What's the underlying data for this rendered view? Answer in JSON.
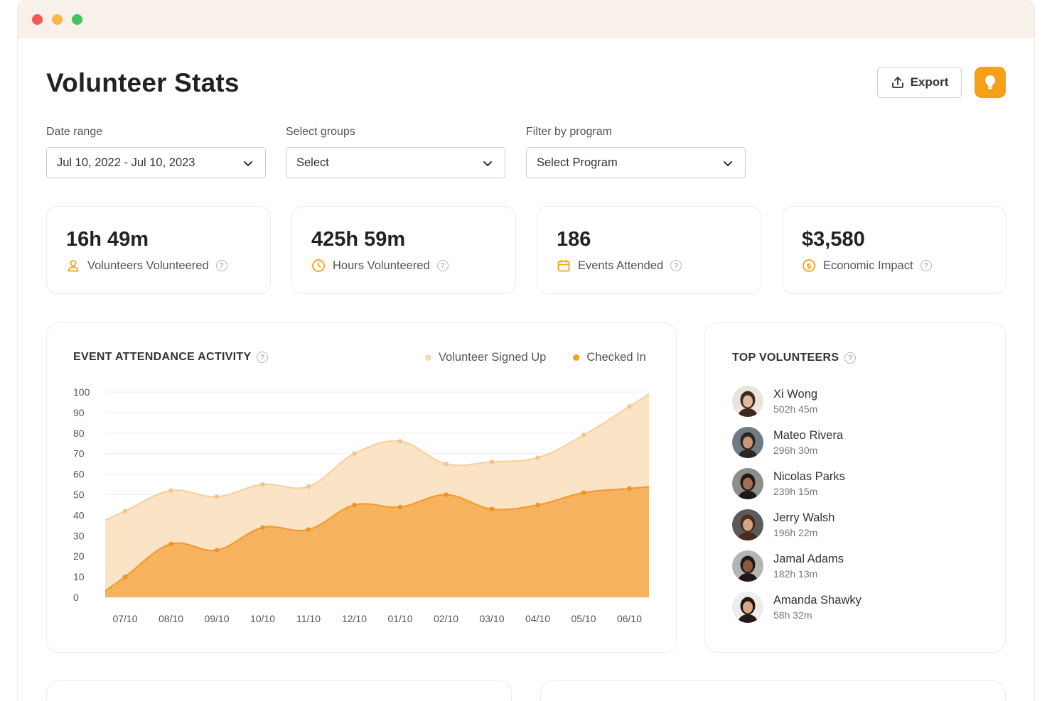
{
  "page": {
    "title": "Volunteer Stats"
  },
  "header": {
    "export_label": "Export"
  },
  "filters": [
    {
      "label": "Date range",
      "value": "Jul 10, 2022 - Jul 10, 2023"
    },
    {
      "label": "Select groups",
      "value": "Select"
    },
    {
      "label": "Filter by program",
      "value": "Select Program"
    }
  ],
  "stats": [
    {
      "value": "16h 49m",
      "label": "Volunteers Volunteered",
      "icon": "person-icon"
    },
    {
      "value": "425h 59m",
      "label": "Hours Volunteered",
      "icon": "clock-icon"
    },
    {
      "value": "186",
      "label": "Events Attended",
      "icon": "calendar-icon"
    },
    {
      "value": "$3,580",
      "label": "Economic Impact",
      "icon": "dollar-coin-icon"
    }
  ],
  "colors": {
    "accent": "#f5a016",
    "signed_up_fill": "#fbe3c6",
    "checked_in_fill": "#f6b25e",
    "checked_in_line": "#f09a28"
  },
  "chart_data": {
    "type": "area",
    "title": "EVENT ATTENDANCE ACTIVITY",
    "categories": [
      "07/10",
      "08/10",
      "09/10",
      "10/10",
      "11/10",
      "12/10",
      "01/10",
      "02/10",
      "03/10",
      "04/10",
      "05/10",
      "06/10"
    ],
    "series": [
      {
        "name": "Volunteer Signed Up",
        "values": [
          42,
          52,
          49,
          55,
          54,
          70,
          76,
          65,
          66,
          68,
          79,
          93
        ]
      },
      {
        "name": "Checked In",
        "values": [
          10,
          26,
          23,
          34,
          33,
          45,
          44,
          50,
          43,
          45,
          51,
          53
        ]
      }
    ],
    "yticks": [
      0,
      10,
      20,
      30,
      40,
      50,
      60,
      70,
      80,
      90,
      100
    ],
    "ylim": [
      0,
      100
    ],
    "legend": "top-right",
    "grid": true
  },
  "top_volunteers": {
    "title": "TOP VOLUNTEERS",
    "items": [
      {
        "name": "Xi Wong",
        "hours": "502h 45m"
      },
      {
        "name": "Mateo Rivera",
        "hours": "296h 30m"
      },
      {
        "name": "Nicolas Parks",
        "hours": "239h 15m"
      },
      {
        "name": "Jerry Walsh",
        "hours": "196h 22m"
      },
      {
        "name": "Jamal Adams",
        "hours": "182h 13m"
      },
      {
        "name": "Amanda Shawky",
        "hours": "58h 32m"
      }
    ]
  }
}
